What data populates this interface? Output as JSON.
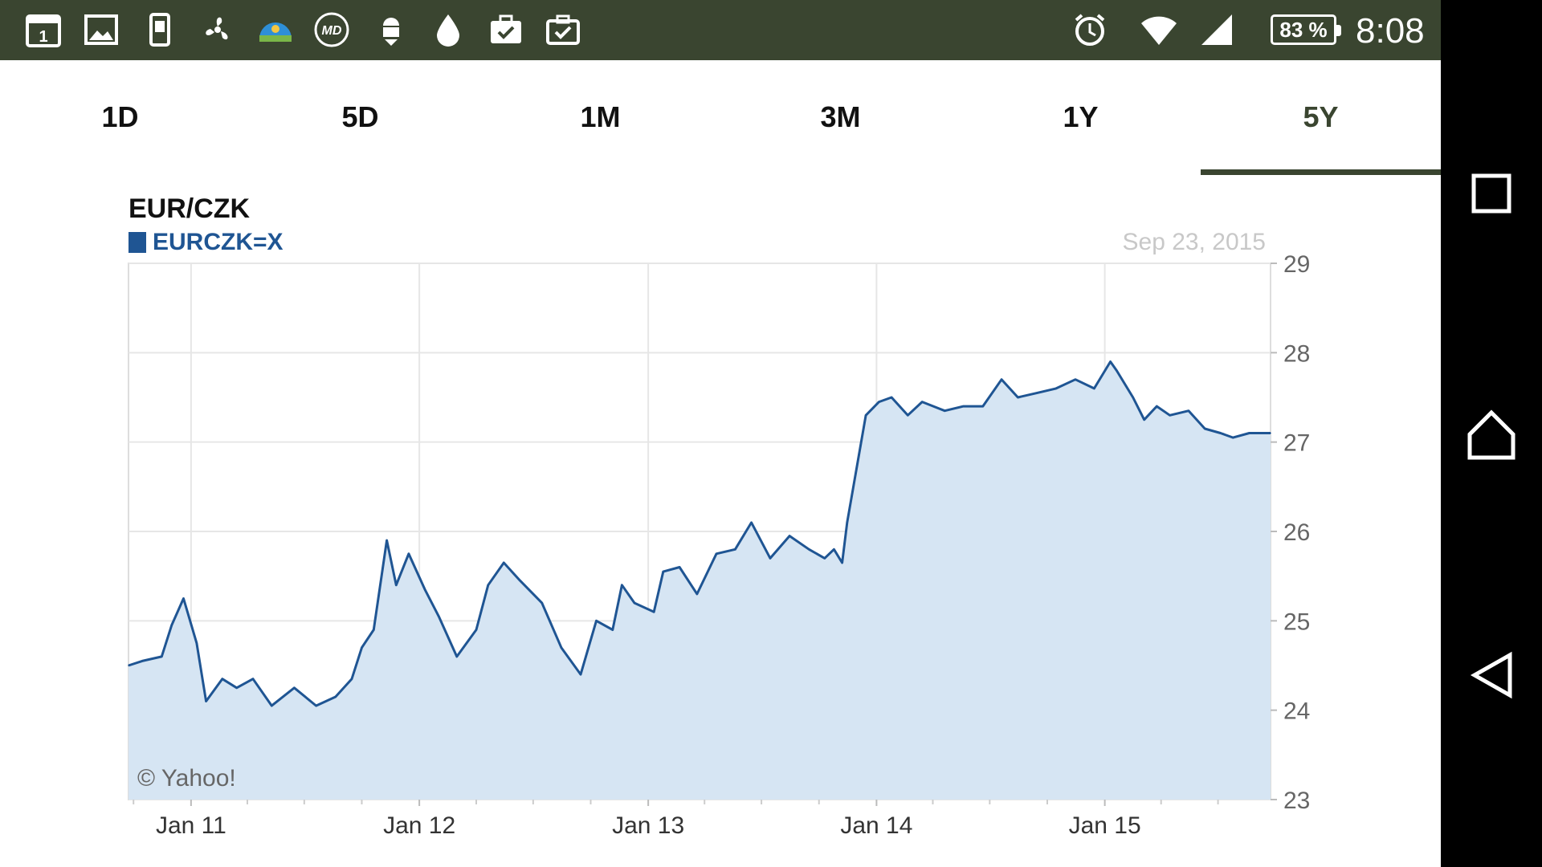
{
  "status_bar": {
    "left_icons": [
      "calendar-icon",
      "gallery-icon",
      "sim-card-icon",
      "fan-icon",
      "weather-icon",
      "md-app-icon",
      "android-download-icon",
      "water-drop-icon",
      "briefcase-check-icon",
      "clipboard-check-icon"
    ],
    "calendar_day": "1",
    "right_icons": [
      "alarm-icon",
      "wifi-icon",
      "signal-icon"
    ],
    "battery": "83 %",
    "time": "8:08"
  },
  "tabs": [
    {
      "label": "1D",
      "active": false
    },
    {
      "label": "5D",
      "active": false
    },
    {
      "label": "1M",
      "active": false
    },
    {
      "label": "3M",
      "active": false
    },
    {
      "label": "1Y",
      "active": false
    },
    {
      "label": "5Y",
      "active": true
    }
  ],
  "chart": {
    "title": "EUR/CZK",
    "legend": "EURCZK=X",
    "date": "Sep 23, 2015",
    "credit": "© Yahoo!"
  },
  "nav_bar": [
    "recents-icon",
    "home-icon",
    "back-icon"
  ],
  "colors": {
    "status_bar": "#3a4530",
    "accent": "#3a4530",
    "series_line": "#1f5593",
    "series_fill": "#d6e5f3",
    "grid": "#e6e6e6"
  },
  "chart_data": {
    "type": "area",
    "title": "EUR/CZK",
    "series": [
      {
        "name": "EURCZK=X",
        "x": [
          "2010-09-23",
          "2010-10-15",
          "2010-11-15",
          "2010-12-01",
          "2010-12-20",
          "2011-01-10",
          "2011-01-25",
          "2011-02-20",
          "2011-03-15",
          "2011-04-10",
          "2011-05-10",
          "2011-06-15",
          "2011-07-20",
          "2011-08-20",
          "2011-09-15",
          "2011-10-01",
          "2011-10-20",
          "2011-11-10",
          "2011-11-25",
          "2011-12-15",
          "2012-01-10",
          "2012-02-01",
          "2012-03-01",
          "2012-04-01",
          "2012-04-20",
          "2012-05-15",
          "2012-06-10",
          "2012-07-15",
          "2012-08-15",
          "2012-09-15",
          "2012-10-10",
          "2012-11-05",
          "2012-11-20",
          "2012-12-10",
          "2013-01-10",
          "2013-01-25",
          "2013-02-20",
          "2013-03-20",
          "2013-04-20",
          "2013-05-20",
          "2013-06-15",
          "2013-07-15",
          "2013-08-15",
          "2013-09-15",
          "2013-10-10",
          "2013-10-25",
          "2013-11-07",
          "2013-11-15",
          "2013-12-15",
          "2014-01-05",
          "2014-01-25",
          "2014-02-20",
          "2014-03-15",
          "2014-04-20",
          "2014-05-20",
          "2014-06-20",
          "2014-07-20",
          "2014-08-15",
          "2014-09-15",
          "2014-10-15",
          "2014-11-15",
          "2014-12-15",
          "2015-01-10",
          "2015-01-20",
          "2015-02-15",
          "2015-03-05",
          "2015-03-25",
          "2015-04-15",
          "2015-05-15",
          "2015-06-10",
          "2015-07-05",
          "2015-07-25",
          "2015-08-20",
          "2015-09-23"
        ],
        "values": [
          24.5,
          24.55,
          24.6,
          24.95,
          25.25,
          24.75,
          24.1,
          24.35,
          24.25,
          24.35,
          24.05,
          24.25,
          24.05,
          24.15,
          24.35,
          24.7,
          24.9,
          25.9,
          25.4,
          25.75,
          25.35,
          25.05,
          24.6,
          24.9,
          25.4,
          25.65,
          25.45,
          25.2,
          24.7,
          24.4,
          25.0,
          24.9,
          25.4,
          25.2,
          25.1,
          25.55,
          25.6,
          25.3,
          25.75,
          25.8,
          26.1,
          25.7,
          25.95,
          25.8,
          25.7,
          25.8,
          25.65,
          26.1,
          27.3,
          27.45,
          27.5,
          27.3,
          27.45,
          27.35,
          27.4,
          27.4,
          27.7,
          27.5,
          27.55,
          27.6,
          27.7,
          27.6,
          27.9,
          27.8,
          27.5,
          27.25,
          27.4,
          27.3,
          27.35,
          27.15,
          27.1,
          27.05,
          27.1,
          27.1
        ]
      }
    ],
    "x_ticks": [
      "Jan 11",
      "Jan 12",
      "Jan 13",
      "Jan 14",
      "Jan 15"
    ],
    "y_ticks": [
      23,
      24,
      25,
      26,
      27,
      28,
      29
    ],
    "ylim": [
      23,
      29
    ],
    "xlim": [
      "2010-09-23",
      "2015-09-23"
    ],
    "grid": true,
    "legend_position": "top-left"
  }
}
